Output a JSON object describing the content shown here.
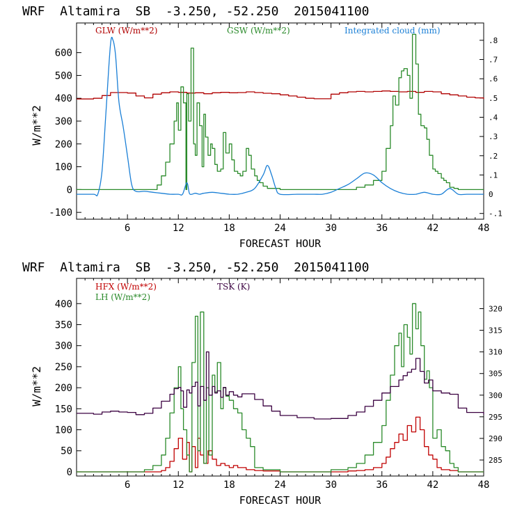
{
  "chart_data": [
    {
      "type": "line",
      "title": "WRF  Altamira  SB  -3.250, -52.250  2015041100",
      "xlabel": "FORECAST HOUR",
      "ylabel": "W/m**2",
      "xlim": [
        0,
        48
      ],
      "ylim": [
        -130,
        730
      ],
      "y2lim": [
        -0.13,
        0.89
      ],
      "xticks": [
        6,
        12,
        18,
        24,
        30,
        36,
        42,
        48
      ],
      "yticks": [
        -100,
        0,
        100,
        200,
        300,
        400,
        500,
        600
      ],
      "y2ticks": [
        "-.1",
        "0",
        ".1",
        ".2",
        ".3",
        ".4",
        ".5",
        ".6",
        ".7",
        ".8"
      ],
      "y2tick_values": [
        -0.1,
        0,
        0.1,
        0.2,
        0.3,
        0.4,
        0.5,
        0.6,
        0.7,
        0.8
      ],
      "series": [
        {
          "name": "GLW (W/m**2)",
          "color": "#b00000",
          "axis": "left",
          "step": true,
          "x": [
            0,
            2,
            3,
            4,
            6,
            7,
            8,
            9,
            10,
            11,
            12,
            13,
            14,
            15,
            16,
            17,
            18,
            19,
            20,
            21,
            22,
            23,
            24,
            25,
            26,
            27,
            28,
            29,
            30,
            31,
            32,
            33,
            34,
            35,
            36,
            37,
            38,
            39,
            40,
            41,
            42,
            43,
            44,
            45,
            46,
            47,
            48
          ],
          "y": [
            397,
            400,
            412,
            425,
            423,
            410,
            402,
            418,
            424,
            428,
            426,
            423,
            424,
            420,
            424,
            426,
            424,
            425,
            428,
            425,
            422,
            420,
            415,
            410,
            405,
            400,
            398,
            398,
            418,
            424,
            428,
            430,
            428,
            430,
            432,
            430,
            428,
            430,
            426,
            430,
            428,
            420,
            415,
            410,
            405,
            402,
            397
          ]
        },
        {
          "name": "GSW (W/m**2)",
          "color": "#2a8a2a",
          "axis": "left",
          "step": true,
          "x": [
            0,
            9,
            9.5,
            10,
            10.5,
            11,
            11.5,
            11.8,
            12,
            12.3,
            12.6,
            12.9,
            13,
            13.2,
            13.5,
            13.8,
            14,
            14.2,
            14.5,
            14.8,
            15,
            15.2,
            15.5,
            15.8,
            16,
            16.3,
            16.6,
            17,
            17.3,
            17.6,
            18,
            18.3,
            18.6,
            19,
            19.3,
            19.6,
            20,
            20.3,
            20.6,
            21,
            21.3,
            21.6,
            22,
            22.5,
            24,
            30,
            31,
            31.5,
            32,
            33,
            34,
            35,
            36,
            36.5,
            37,
            37.3,
            37.6,
            38,
            38.3,
            38.6,
            39,
            39.3,
            39.6,
            40,
            40.3,
            40.6,
            41,
            41.3,
            41.6,
            42,
            42.3,
            42.6,
            43,
            43.3,
            43.6,
            44,
            44.5,
            45,
            48
          ],
          "y": [
            0,
            0,
            20,
            60,
            120,
            200,
            300,
            380,
            260,
            450,
            380,
            0,
            420,
            300,
            620,
            200,
            150,
            380,
            280,
            100,
            330,
            230,
            150,
            200,
            180,
            110,
            80,
            90,
            250,
            160,
            200,
            130,
            80,
            70,
            60,
            80,
            180,
            150,
            90,
            60,
            40,
            30,
            15,
            5,
            0,
            0,
            0,
            0,
            0,
            10,
            20,
            40,
            80,
            180,
            280,
            410,
            370,
            490,
            520,
            530,
            500,
            400,
            680,
            550,
            330,
            280,
            270,
            220,
            150,
            90,
            80,
            70,
            50,
            40,
            30,
            10,
            5,
            0,
            0
          ]
        },
        {
          "name": "Integrated cloud (mm)",
          "color": "#1a7fd6",
          "axis": "right",
          "smooth": true,
          "x": [
            0,
            2,
            2.5,
            3,
            3.5,
            4,
            4.3,
            4.6,
            5,
            5.5,
            6,
            6.5,
            7,
            8,
            9,
            10,
            11,
            12,
            12.5,
            13,
            13.3,
            13.6,
            14,
            14.5,
            15,
            16,
            17,
            18,
            19,
            20,
            21,
            22,
            22.5,
            23,
            23.5,
            24,
            26,
            27,
            28,
            29,
            30,
            31,
            32,
            33,
            34,
            35,
            36,
            37,
            38,
            39,
            40,
            41,
            42,
            43,
            44,
            45,
            46,
            47,
            48
          ],
          "y": [
            0,
            0,
            0,
            0.12,
            0.45,
            0.78,
            0.8,
            0.72,
            0.48,
            0.35,
            0.2,
            0.05,
            0.015,
            0.015,
            0.01,
            0.005,
            0,
            0,
            0,
            0.06,
            0.005,
            0,
            0.005,
            0,
            0.005,
            0.01,
            0.005,
            0,
            0,
            0.01,
            0.03,
            0.1,
            0.15,
            0.1,
            0.03,
            0,
            0,
            0,
            0,
            0,
            0.01,
            0.03,
            0.05,
            0.08,
            0.11,
            0.1,
            0.06,
            0.03,
            0.01,
            0,
            0,
            0.01,
            0,
            0,
            0.03,
            0,
            0,
            0,
            0
          ]
        }
      ]
    },
    {
      "type": "line",
      "title": "WRF  Altamira  SB  -3.250, -52.250  2015041100",
      "xlabel": "FORECAST HOUR",
      "ylabel": "W/m**2",
      "xlim": [
        0,
        48
      ],
      "ylim": [
        -10,
        460
      ],
      "y2lim": [
        281.3,
        327
      ],
      "xticks": [
        6,
        12,
        18,
        24,
        30,
        36,
        42,
        48
      ],
      "yticks": [
        0,
        50,
        100,
        150,
        200,
        250,
        300,
        350,
        400
      ],
      "y2ticks": [
        "285",
        "290",
        "295",
        "300",
        "305",
        "310",
        "315",
        "320"
      ],
      "y2tick_values": [
        285,
        290,
        295,
        300,
        305,
        310,
        315,
        320
      ],
      "series": [
        {
          "name": "HFX (W/m**2)",
          "color": "#c00000",
          "axis": "left",
          "step": true,
          "x": [
            0,
            9,
            10,
            10.5,
            11,
            11.5,
            12,
            12.5,
            13,
            13.3,
            13.6,
            14,
            14.3,
            14.6,
            15,
            15.5,
            16,
            16.5,
            17,
            17.5,
            18,
            18.5,
            19,
            20,
            21,
            22,
            24,
            30,
            32,
            33,
            34,
            35,
            36,
            36.5,
            37,
            37.5,
            38,
            38.5,
            39,
            39.5,
            40,
            40.5,
            41,
            41.5,
            42,
            42.5,
            43,
            44,
            45,
            48
          ],
          "y": [
            0,
            0,
            3,
            10,
            25,
            55,
            80,
            30,
            70,
            0,
            60,
            10,
            80,
            40,
            20,
            50,
            30,
            15,
            20,
            15,
            10,
            15,
            10,
            5,
            3,
            2,
            0,
            0,
            2,
            3,
            5,
            10,
            20,
            35,
            55,
            70,
            90,
            75,
            110,
            95,
            130,
            100,
            60,
            40,
            30,
            10,
            5,
            3,
            0,
            0
          ]
        },
        {
          "name": "LH (W/m**2)",
          "color": "#2a8a2a",
          "axis": "left",
          "step": true,
          "x": [
            0,
            5,
            8,
            9,
            10,
            10.5,
            11,
            11.5,
            12,
            12.3,
            12.6,
            13,
            13.3,
            13.6,
            14,
            14.3,
            14.6,
            15,
            15.3,
            15.6,
            16,
            16.3,
            16.6,
            17,
            17.3,
            17.6,
            18,
            18.5,
            19,
            19.5,
            20,
            20.5,
            21,
            22,
            24,
            28,
            30,
            32,
            33,
            34,
            35,
            36,
            36.5,
            37,
            37.5,
            38,
            38.3,
            38.6,
            39,
            39.3,
            39.6,
            40,
            40.3,
            40.6,
            41,
            41.3,
            41.6,
            42,
            42.5,
            43,
            43.5,
            44,
            44.5,
            45,
            48
          ],
          "y": [
            0,
            0,
            5,
            15,
            40,
            80,
            140,
            200,
            250,
            150,
            100,
            40,
            0,
            260,
            370,
            50,
            380,
            20,
            200,
            40,
            230,
            190,
            260,
            150,
            200,
            180,
            170,
            150,
            140,
            100,
            80,
            60,
            10,
            5,
            0,
            0,
            5,
            10,
            20,
            40,
            70,
            110,
            170,
            230,
            300,
            330,
            250,
            350,
            320,
            280,
            400,
            340,
            380,
            300,
            220,
            240,
            200,
            80,
            100,
            60,
            50,
            20,
            10,
            0,
            0
          ]
        },
        {
          "name": "TSK (K)",
          "color": "#3a0040",
          "axis": "right",
          "step": true,
          "x": [
            0,
            2,
            3,
            4,
            5,
            6,
            7,
            8,
            9,
            10,
            11,
            11.5,
            12,
            12.3,
            12.6,
            13,
            13.3,
            13.6,
            14,
            14.3,
            14.6,
            15,
            15.3,
            15.6,
            16,
            16.3,
            16.6,
            17,
            17.3,
            17.6,
            18,
            18.5,
            19,
            19.5,
            20,
            21,
            22,
            23,
            24,
            26,
            28,
            30,
            32,
            33,
            34,
            35,
            36,
            37,
            38,
            38.5,
            39,
            39.5,
            40,
            40.5,
            41,
            41.5,
            42,
            43,
            44,
            45,
            46,
            48
          ],
          "y": [
            295.8,
            295.6,
            296.1,
            296.3,
            296.1,
            296.0,
            295.5,
            295.8,
            297.0,
            298.6,
            300.2,
            301.5,
            301.8,
            301.0,
            297.2,
            301.2,
            300.5,
            302.0,
            303.0,
            297.5,
            302.0,
            298.8,
            310.0,
            300.0,
            302.0,
            300.5,
            301.0,
            299.5,
            301.8,
            300.0,
            300.8,
            300.0,
            299.6,
            300.3,
            300.3,
            299.0,
            297.5,
            296.3,
            295.3,
            294.8,
            294.5,
            294.6,
            295.3,
            296.1,
            297.4,
            298.8,
            300.5,
            302.0,
            303.5,
            304.5,
            305.3,
            306.0,
            308.5,
            305.5,
            302.8,
            303.5,
            301.0,
            300.5,
            300.2,
            297.0,
            296.0,
            295.5
          ]
        }
      ]
    }
  ]
}
